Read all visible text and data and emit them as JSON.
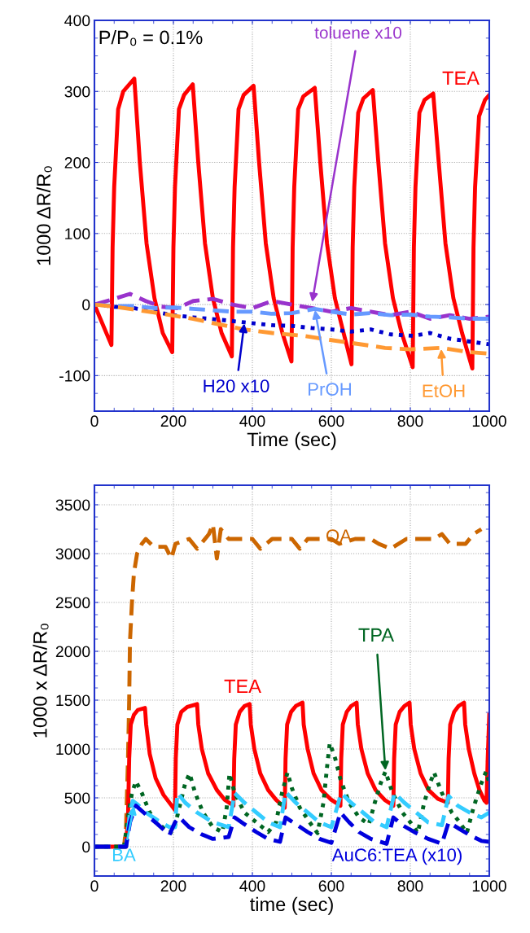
{
  "chart_data": [
    {
      "type": "line",
      "xlabel": "Time (sec)",
      "ylabel": "1000 ΔR/R₀",
      "xlim": [
        0,
        1000
      ],
      "xticks": [
        0,
        200,
        400,
        600,
        800,
        1000
      ],
      "ylim": [
        -150,
        400
      ],
      "yticks": [
        -100,
        0,
        100,
        200,
        300,
        400
      ],
      "grid": true,
      "legend": false,
      "annotations": [
        "P/P₀ = 0.1%",
        {
          "text": "TEA",
          "x": 858,
          "y": 297
        },
        {
          "text": "toluene x10",
          "x": 551,
          "y": 2
        },
        {
          "text": "H20 x10",
          "x": 380,
          "y": -25
        },
        {
          "text": "PrOH",
          "x": 558,
          "y": -6
        },
        {
          "text": "EtOH",
          "x": 878,
          "y": -61
        }
      ],
      "series": [
        {
          "color": "#ff0000",
          "line_style": "solid",
          "x": [
            0,
            43,
            46,
            50,
            60,
            73,
            101,
            115,
            132,
            152,
            173,
            197,
            200,
            204,
            214,
            227,
            249,
            263,
            280,
            300,
            322,
            348,
            351,
            355,
            365,
            378,
            403,
            417,
            434,
            454,
            476,
            499,
            502,
            506,
            516,
            529,
            558,
            572,
            589,
            609,
            631,
            651,
            654,
            658,
            668,
            681,
            705,
            719,
            736,
            756,
            778,
            806,
            809,
            813,
            823,
            836,
            858,
            872,
            889,
            909,
            931,
            957,
            960,
            964,
            974,
            989,
            1000
          ],
          "values": [
            0,
            -57,
            80,
            165,
            275,
            300,
            318,
            200,
            86,
            9,
            -40,
            -67,
            80,
            165,
            275,
            295,
            310,
            200,
            86,
            9,
            -40,
            -73,
            80,
            165,
            275,
            295,
            308,
            200,
            86,
            9,
            -40,
            -80,
            80,
            165,
            275,
            293,
            305,
            200,
            86,
            9,
            -40,
            -84,
            80,
            165,
            270,
            290,
            302,
            200,
            86,
            9,
            -40,
            -88,
            80,
            165,
            270,
            288,
            297,
            200,
            86,
            9,
            -40,
            -90,
            80,
            165,
            265,
            288,
            295
          ]
        },
        {
          "color": "#9933cc",
          "line_style": "dashed",
          "x": [
            0,
            50,
            90,
            130,
            170,
            210,
            250,
            300,
            350,
            400,
            450,
            500,
            550,
            600,
            650,
            700,
            750,
            800,
            850,
            900,
            950,
            1000
          ],
          "values": [
            0,
            8,
            15,
            5,
            -3,
            -5,
            5,
            8,
            0,
            -5,
            5,
            0,
            -5,
            -10,
            -5,
            -10,
            -15,
            -10,
            -20,
            -15,
            -20,
            -17
          ]
        },
        {
          "color": "#0000cc",
          "line_style": "dotted",
          "x": [
            0,
            50,
            100,
            150,
            200,
            250,
            311,
            380,
            448,
            500,
            550,
            600,
            650,
            700,
            750,
            806,
            850,
            900,
            950,
            1000
          ],
          "values": [
            0,
            -3,
            -5,
            -10,
            -15,
            -18,
            -21,
            -25,
            -29,
            -30,
            -33,
            -35,
            -38,
            -35,
            -42,
            -44,
            -40,
            -48,
            -52,
            -56
          ]
        },
        {
          "color": "#6699ff",
          "line_style": "dashed",
          "x": [
            0,
            50,
            100,
            150,
            200,
            250,
            300,
            350,
            400,
            448,
            500,
            558,
            600,
            650,
            700,
            750,
            800,
            850,
            900,
            950,
            1000
          ],
          "values": [
            0,
            -2,
            -2,
            -5,
            -4,
            -6,
            -8,
            -10,
            -10,
            -13,
            -12,
            -6,
            -10,
            -14,
            -12,
            -15,
            -14,
            -17,
            -18,
            -20,
            -20
          ]
        },
        {
          "color": "#ff9933",
          "line_style": "dashed",
          "x": [
            0,
            50,
            100,
            173,
            250,
            300,
            379,
            450,
            530,
            600,
            650,
            700,
            736,
            800,
            878,
            950,
            1000
          ],
          "values": [
            0,
            -3,
            -7,
            -13,
            -20,
            -26,
            -35,
            -40,
            -44,
            -50,
            -54,
            -58,
            -61,
            -63,
            -61,
            -67,
            -69
          ]
        }
      ]
    },
    {
      "type": "line",
      "xlabel": "time (sec)",
      "ylabel": "1000 x ΔR/R₀",
      "xlim": [
        0,
        1000
      ],
      "xticks": [
        0,
        200,
        400,
        600,
        800,
        1000
      ],
      "ylim": [
        -300,
        3700
      ],
      "yticks": [
        0,
        500,
        1000,
        1500,
        2000,
        2500,
        3000,
        3500
      ],
      "grid": true,
      "legend": false,
      "annotations": [
        {
          "text": "OA",
          "x": 617,
          "y": 3150
        },
        {
          "text": "TEA",
          "x": 393,
          "y": 1460
        },
        {
          "text": "TPA",
          "x": 737,
          "y": 770
        },
        {
          "text": "BA",
          "x": 101,
          "y": 430
        },
        "AuC6:TEA (x10)"
      ],
      "series": [
        {
          "color": "#cc6600",
          "line_style": "dashed",
          "x": [
            0,
            75,
            80,
            85,
            88,
            90,
            95,
            100,
            108,
            120,
            130,
            150,
            180,
            195,
            205,
            240,
            260,
            290,
            300,
            310,
            320,
            340,
            400,
            420,
            450,
            500,
            520,
            540,
            600,
            620,
            660,
            700,
            720,
            750,
            790,
            820,
            860,
            880,
            900,
            940,
            960,
            980
          ],
          "values": [
            0,
            0,
            200,
            900,
            1500,
            2100,
            2500,
            2800,
            3000,
            3100,
            3150,
            3070,
            3070,
            2950,
            3100,
            3150,
            3050,
            3200,
            3300,
            2950,
            3250,
            3150,
            3150,
            3050,
            3150,
            3150,
            3050,
            3150,
            3150,
            3100,
            3150,
            3150,
            3100,
            3050,
            3150,
            3150,
            3150,
            3200,
            3100,
            3100,
            3200,
            3250
          ]
        },
        {
          "color": "#ff0000",
          "line_style": "solid",
          "x": [
            0,
            80,
            85,
            88,
            92,
            100,
            110,
            128,
            131,
            140,
            155,
            175,
            204,
            206,
            210,
            220,
            235,
            260,
            263,
            272,
            288,
            310,
            330,
            352,
            354,
            358,
            368,
            380,
            393,
            396,
            405,
            420,
            440,
            460,
            482,
            484,
            488,
            498,
            510,
            527,
            530,
            540,
            555,
            575,
            600,
            623,
            625,
            629,
            639,
            650,
            664,
            667,
            676,
            692,
            712,
            735,
            757,
            759,
            763,
            773,
            785,
            798,
            801,
            810,
            826,
            846,
            870,
            895,
            897,
            901,
            911,
            922,
            936,
            939,
            948,
            962,
            975,
            988,
            993,
            996,
            1000
          ],
          "values": [
            0,
            0,
            300,
            900,
            1250,
            1350,
            1400,
            1420,
            1250,
            950,
            700,
            530,
            375,
            900,
            1250,
            1380,
            1430,
            1460,
            1250,
            1000,
            750,
            580,
            480,
            420,
            900,
            1250,
            1380,
            1440,
            1460,
            1250,
            1000,
            750,
            580,
            480,
            400,
            900,
            1250,
            1380,
            1440,
            1475,
            1250,
            1000,
            750,
            580,
            480,
            420,
            900,
            1250,
            1380,
            1440,
            1475,
            1250,
            1000,
            750,
            580,
            480,
            420,
            900,
            1250,
            1380,
            1440,
            1475,
            1250,
            1000,
            750,
            580,
            490,
            450,
            900,
            1250,
            1380,
            1440,
            1475,
            1250,
            1000,
            750,
            580,
            470,
            450,
            900,
            1350
          ]
        },
        {
          "color": "#006622",
          "line_style": "dotted",
          "x": [
            0,
            75,
            85,
            95,
            105,
            120,
            140,
            160,
            185,
            200,
            215,
            230,
            241,
            255,
            275,
            300,
            324,
            335,
            342,
            355,
            380,
            410,
            440,
            460,
            475,
            489,
            500,
            520,
            545,
            565,
            580,
            590,
            596,
            610,
            623,
            645,
            670,
            695,
            710,
            725,
            737,
            755,
            780,
            800,
            819,
            835,
            850,
            860,
            880,
            905,
            925,
            943,
            960,
            980,
            992,
            1000
          ],
          "values": [
            0,
            0,
            300,
            550,
            670,
            550,
            350,
            250,
            150,
            150,
            400,
            650,
            750,
            550,
            350,
            200,
            150,
            400,
            750,
            550,
            350,
            250,
            150,
            250,
            550,
            760,
            600,
            400,
            250,
            140,
            450,
            850,
            1060,
            900,
            690,
            450,
            300,
            230,
            450,
            650,
            770,
            550,
            350,
            250,
            140,
            450,
            650,
            760,
            550,
            350,
            250,
            140,
            400,
            650,
            770,
            650
          ]
        },
        {
          "color": "#33ccff",
          "line_style": "dashed",
          "x": [
            0,
            80,
            90,
            97,
            110,
            130,
            160,
            190,
            204,
            210,
            230,
            260,
            300,
            340,
            355,
            380,
            410,
            440,
            470,
            484,
            510,
            540,
            570,
            600,
            625,
            650,
            680,
            710,
            740,
            760,
            785,
            815,
            845,
            880,
            897,
            920,
            950,
            980,
            1000
          ],
          "values": [
            0,
            0,
            350,
            470,
            430,
            350,
            270,
            200,
            200,
            550,
            450,
            350,
            250,
            200,
            550,
            450,
            350,
            250,
            200,
            560,
            450,
            350,
            250,
            200,
            550,
            450,
            350,
            250,
            200,
            550,
            450,
            350,
            250,
            220,
            520,
            420,
            350,
            300,
            350
          ]
        },
        {
          "color": "#0000dd",
          "line_style": "dashed",
          "x": [
            0,
            80,
            90,
            105,
            130,
            160,
            190,
            204,
            215,
            240,
            270,
            300,
            340,
            355,
            380,
            410,
            440,
            470,
            484,
            510,
            540,
            570,
            600,
            623,
            645,
            670,
            700,
            740,
            757,
            780,
            810,
            845,
            880,
            897,
            925,
            950,
            980,
            1000
          ],
          "values": [
            0,
            0,
            250,
            420,
            330,
            230,
            120,
            250,
            300,
            200,
            130,
            80,
            100,
            300,
            230,
            150,
            80,
            50,
            300,
            230,
            150,
            80,
            40,
            350,
            250,
            150,
            80,
            30,
            300,
            220,
            150,
            80,
            30,
            250,
            180,
            120,
            60,
            50
          ]
        }
      ]
    }
  ]
}
